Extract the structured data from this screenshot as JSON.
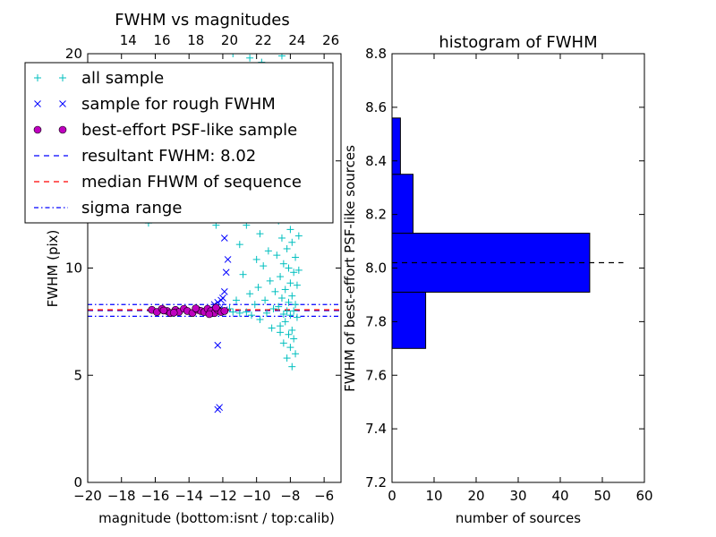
{
  "chart_data": [
    {
      "type": "scatter",
      "title": "FWHM vs magnitudes",
      "xlabel": "magnitude (bottom:isnt / top:calib)",
      "ylabel": "FWHM (pix)",
      "xlim": [
        -20,
        -5
      ],
      "ylim": [
        0,
        20
      ],
      "x_ticks": [
        "−20",
        "−18",
        "−16",
        "−14",
        "−12",
        "−10",
        "−8",
        "−6"
      ],
      "x_tick_values": [
        -20,
        -18,
        -16,
        -14,
        -12,
        -10,
        -8,
        -6
      ],
      "y_ticks": [
        "0",
        "5",
        "10",
        "15",
        "20"
      ],
      "y_tick_values": [
        0,
        5,
        10,
        15,
        20
      ],
      "top_axis": {
        "ticks": [
          "14",
          "16",
          "18",
          "20",
          "22",
          "24",
          "26"
        ],
        "tick_values": [
          14,
          16,
          18,
          20,
          22,
          24,
          26
        ],
        "xlim": [
          11.6,
          26.6
        ]
      },
      "legend": {
        "placement": "upper-left",
        "entries": [
          {
            "label": "all sample",
            "marker": "plus",
            "color": "#00BFBF"
          },
          {
            "label": "sample for rough FWHM",
            "marker": "x",
            "color": "#0000FF"
          },
          {
            "label": "best-effort PSF-like sample",
            "marker": "circle",
            "color": "#BF00BF"
          },
          {
            "label": "resultant FWHM: 8.02",
            "marker": "dashed",
            "color": "#0000FF"
          },
          {
            "label": "median FHWM of sequence",
            "marker": "dashed",
            "color": "#FF0000"
          },
          {
            "label": "sigma range",
            "marker": "dashdot",
            "color": "#0000FF"
          }
        ]
      },
      "hlines": [
        {
          "y": 8.02,
          "style": "dashed",
          "color": "#0000FF"
        },
        {
          "y": 8.05,
          "style": "dashed",
          "color": "#FF0000"
        },
        {
          "y": 8.3,
          "style": "dashdot",
          "color": "#0000FF"
        },
        {
          "y": 7.75,
          "style": "dashdot",
          "color": "#0000FF"
        }
      ],
      "series": [
        {
          "marker": "plus",
          "color": "#00BFBF",
          "points": [
            [
              -16.4,
              12.1
            ],
            [
              -12.4,
              12.0
            ],
            [
              -11.4,
              20.0
            ],
            [
              -10.4,
              19.8
            ],
            [
              -9.7,
              19.6
            ],
            [
              -9.2,
              19.2
            ],
            [
              -8.5,
              19.9
            ],
            [
              -8.2,
              18.6
            ],
            [
              -9.0,
              18.0
            ],
            [
              -8.0,
              17.5
            ],
            [
              -8.4,
              16.8
            ],
            [
              -7.9,
              16.0
            ],
            [
              -8.6,
              15.2
            ],
            [
              -9.4,
              14.8
            ],
            [
              -8.1,
              14.2
            ],
            [
              -10.2,
              13.6
            ],
            [
              -8.3,
              13.4
            ],
            [
              -7.8,
              12.8
            ],
            [
              -9.1,
              12.5
            ],
            [
              -8.7,
              12.2
            ],
            [
              -10.6,
              12.0
            ],
            [
              -8.0,
              11.8
            ],
            [
              -9.8,
              11.6
            ],
            [
              -8.5,
              11.4
            ],
            [
              -7.9,
              11.2
            ],
            [
              -11.0,
              11.1
            ],
            [
              -8.2,
              10.9
            ],
            [
              -9.3,
              10.8
            ],
            [
              -8.8,
              10.6
            ],
            [
              -7.7,
              10.5
            ],
            [
              -10.0,
              10.4
            ],
            [
              -8.4,
              10.2
            ],
            [
              -9.6,
              10.1
            ],
            [
              -8.1,
              10.0
            ],
            [
              -7.8,
              9.8
            ],
            [
              -10.8,
              9.7
            ],
            [
              -8.6,
              9.6
            ],
            [
              -9.2,
              9.4
            ],
            [
              -8.0,
              9.3
            ],
            [
              -7.6,
              9.2
            ],
            [
              -9.9,
              9.1
            ],
            [
              -8.3,
              9.0
            ],
            [
              -8.9,
              8.9
            ],
            [
              -10.4,
              8.8
            ],
            [
              -7.9,
              8.7
            ],
            [
              -8.5,
              8.6
            ],
            [
              -9.5,
              8.5
            ],
            [
              -11.2,
              8.5
            ],
            [
              -8.1,
              8.4
            ],
            [
              -7.7,
              8.3
            ],
            [
              -10.1,
              8.3
            ],
            [
              -8.7,
              8.2
            ],
            [
              -9.0,
              8.1
            ],
            [
              -11.6,
              8.1
            ],
            [
              -8.2,
              8.0
            ],
            [
              -7.8,
              8.0
            ],
            [
              -10.6,
              7.95
            ],
            [
              -9.4,
              7.9
            ],
            [
              -8.4,
              7.85
            ],
            [
              -11.0,
              7.9
            ],
            [
              -8.0,
              7.8
            ],
            [
              -7.6,
              7.7
            ],
            [
              -9.8,
              7.6
            ],
            [
              -8.3,
              7.5
            ],
            [
              -8.6,
              7.3
            ],
            [
              -7.9,
              7.1
            ],
            [
              -8.1,
              6.9
            ],
            [
              -7.8,
              6.7
            ],
            [
              -8.4,
              6.5
            ],
            [
              -8.0,
              6.3
            ],
            [
              -7.7,
              6.0
            ],
            [
              -8.2,
              5.8
            ],
            [
              -7.9,
              5.4
            ],
            [
              -8.6,
              7.0
            ],
            [
              -9.1,
              7.2
            ],
            [
              -10.3,
              7.8
            ],
            [
              -11.4,
              7.95
            ],
            [
              -7.5,
              9.9
            ],
            [
              -7.5,
              11.5
            ],
            [
              -8.8,
              13.9
            ],
            [
              -9.3,
              16.2
            ],
            [
              -10.9,
              14.1
            ],
            [
              -11.8,
              12.6
            ],
            [
              -8.3,
              17.1
            ]
          ]
        },
        {
          "marker": "x",
          "color": "#0000FF",
          "points": [
            [
              -12.3,
              3.4
            ],
            [
              -12.2,
              3.5
            ],
            [
              -12.3,
              6.4
            ],
            [
              -11.8,
              9.8
            ],
            [
              -11.9,
              11.4
            ],
            [
              -11.9,
              8.9
            ],
            [
              -12.1,
              8.5
            ],
            [
              -12.3,
              8.4
            ],
            [
              -12.5,
              8.3
            ],
            [
              -12.0,
              8.6
            ],
            [
              -11.7,
              10.4
            ],
            [
              -12.2,
              8.1
            ],
            [
              -12.6,
              8.0
            ],
            [
              -11.9,
              8.05
            ]
          ]
        },
        {
          "marker": "circle",
          "color": "#BF00BF",
          "points": [
            [
              -16.2,
              8.05
            ],
            [
              -15.9,
              7.95
            ],
            [
              -15.6,
              8.1
            ],
            [
              -15.3,
              8.0
            ],
            [
              -15.1,
              7.9
            ],
            [
              -14.8,
              8.05
            ],
            [
              -14.6,
              7.95
            ],
            [
              -14.3,
              8.1
            ],
            [
              -14.1,
              8.0
            ],
            [
              -13.8,
              7.9
            ],
            [
              -13.5,
              8.05
            ],
            [
              -13.3,
              8.0
            ],
            [
              -13.1,
              7.95
            ],
            [
              -12.9,
              8.1
            ],
            [
              -12.7,
              8.0
            ],
            [
              -12.5,
              7.9
            ],
            [
              -12.3,
              8.05
            ],
            [
              -12.1,
              7.95
            ],
            [
              -11.9,
              8.0
            ],
            [
              -12.8,
              7.85
            ],
            [
              -13.6,
              8.12
            ],
            [
              -14.9,
              7.92
            ],
            [
              -15.5,
              8.02
            ],
            [
              -12.4,
              8.15
            ]
          ]
        }
      ]
    },
    {
      "type": "bar",
      "orientation": "horizontal",
      "title": "histogram of FWHM",
      "xlabel": "number of sources",
      "ylabel": "FWHM of best-effort PSF-like sources",
      "xlim": [
        0,
        60
      ],
      "ylim": [
        7.2,
        8.8
      ],
      "x_ticks": [
        "0",
        "10",
        "20",
        "30",
        "40",
        "50",
        "60"
      ],
      "x_tick_values": [
        0,
        10,
        20,
        30,
        40,
        50,
        60
      ],
      "y_ticks": [
        "7.2",
        "7.4",
        "7.6",
        "7.8",
        "8.0",
        "8.2",
        "8.4",
        "8.6",
        "8.8"
      ],
      "y_tick_values": [
        7.2,
        7.4,
        7.6,
        7.8,
        8.0,
        8.2,
        8.4,
        8.6,
        8.8
      ],
      "bin_edges": [
        7.7,
        7.91,
        8.13,
        8.35,
        8.56
      ],
      "values": [
        8,
        47,
        5,
        2
      ],
      "bar_color": "#0000FF",
      "hline": {
        "y": 8.02,
        "style": "dashed",
        "color": "#000000"
      }
    }
  ]
}
